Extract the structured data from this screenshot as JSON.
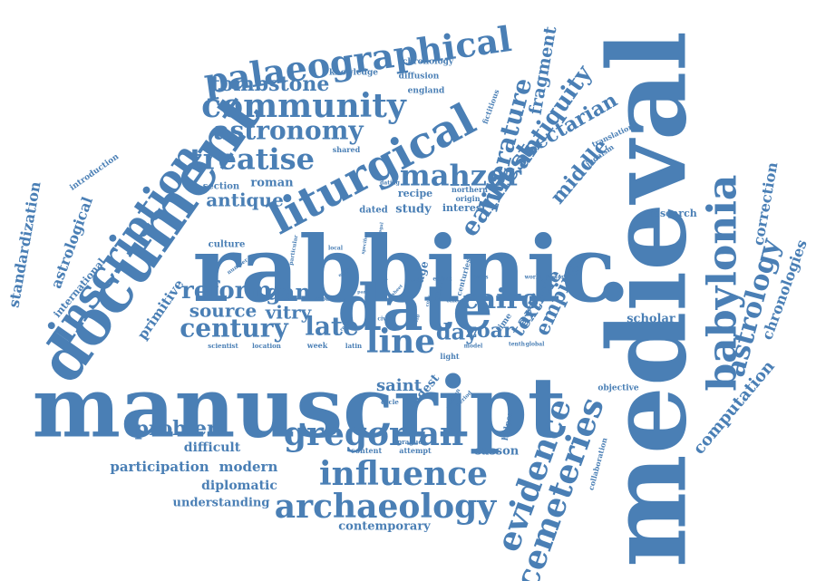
{
  "color": "#4a7fb5",
  "words": [
    {
      "text": "manuscript",
      "weight": 100
    },
    {
      "text": "rabbinic",
      "weight": 95
    },
    {
      "text": "medieval",
      "weight": 96
    },
    {
      "text": "date",
      "weight": 68
    },
    {
      "text": "document",
      "weight": 62
    },
    {
      "text": "babylonia",
      "weight": 50
    },
    {
      "text": "inscription",
      "weight": 48
    },
    {
      "text": "liturgical",
      "weight": 46
    },
    {
      "text": "cemeteries",
      "weight": 42
    },
    {
      "text": "evidence",
      "weight": 42
    },
    {
      "text": "palaeographical",
      "weight": 42
    },
    {
      "text": "community",
      "weight": 37
    },
    {
      "text": "gregorian",
      "weight": 37
    },
    {
      "text": "influence",
      "weight": 36
    },
    {
      "text": "archaeology",
      "weight": 36
    },
    {
      "text": "line",
      "weight": 36
    },
    {
      "text": "astrology",
      "weight": 34
    },
    {
      "text": "treatise",
      "weight": 32
    },
    {
      "text": "astronomy",
      "weight": 32
    },
    {
      "text": "century",
      "weight": 32
    },
    {
      "text": "mahzor",
      "weight": 32
    },
    {
      "text": "literature",
      "weight": 30
    },
    {
      "text": "earliest",
      "weight": 30
    },
    {
      "text": "cairo",
      "weight": 30
    },
    {
      "text": "late",
      "weight": 28
    },
    {
      "text": "reform",
      "weight": 28
    },
    {
      "text": "antiquity",
      "weight": 26
    },
    {
      "text": "tombstone",
      "weight": 24
    },
    {
      "text": "problem",
      "weight": 24
    },
    {
      "text": "gan",
      "weight": 24
    },
    {
      "text": "day",
      "weight": 24
    },
    {
      "text": "zoar",
      "weight": 22
    },
    {
      "text": "empire",
      "weight": 22
    },
    {
      "text": "sectarian",
      "weight": 22
    },
    {
      "text": "article",
      "weight": 22
    },
    {
      "text": "middle",
      "weight": 22
    },
    {
      "text": "source",
      "weight": 20
    },
    {
      "text": "vitry",
      "weight": 20
    },
    {
      "text": "antique",
      "weight": 20
    },
    {
      "text": "text",
      "weight": 20
    },
    {
      "text": "fragment",
      "weight": 19
    },
    {
      "text": "saint",
      "weight": 18
    },
    {
      "text": "computation",
      "weight": 18
    },
    {
      "text": "chronologies",
      "weight": 16
    },
    {
      "text": "correction",
      "weight": 16
    },
    {
      "text": "standardization",
      "weight": 16
    },
    {
      "text": "astrological",
      "weight": 16
    },
    {
      "text": "primitive",
      "weight": 15
    },
    {
      "text": "participation",
      "weight": 15
    },
    {
      "text": "modern",
      "weight": 15
    },
    {
      "text": "difficult",
      "weight": 14
    },
    {
      "text": "diplomatic",
      "weight": 14
    },
    {
      "text": "understanding",
      "weight": 13
    },
    {
      "text": "contemporary",
      "weight": 13
    },
    {
      "text": "sasson",
      "weight": 13
    },
    {
      "text": "scholar",
      "weight": 13
    },
    {
      "text": "oldest",
      "weight": 13
    },
    {
      "text": "roman",
      "weight": 13
    },
    {
      "text": "study",
      "weight": 13
    },
    {
      "text": "recipe",
      "weight": 11
    },
    {
      "text": "research",
      "weight": 11
    },
    {
      "text": "international",
      "weight": 11
    },
    {
      "text": "interest",
      "weight": 11
    },
    {
      "text": "dated",
      "weight": 10
    },
    {
      "text": "section",
      "weight": 10
    },
    {
      "text": "more",
      "weight": 10
    },
    {
      "text": "culture",
      "weight": 10
    },
    {
      "text": "objective",
      "weight": 9
    },
    {
      "text": "age",
      "weight": 12
    },
    {
      "text": "introduction",
      "weight": 9
    },
    {
      "text": "chronology",
      "weight": 9
    },
    {
      "text": "knowledge",
      "weight": 9
    },
    {
      "text": "diffusion",
      "weight": 9
    },
    {
      "text": "england",
      "weight": 9
    },
    {
      "text": "shared",
      "weight": 8
    },
    {
      "text": "halper",
      "weight": 9
    },
    {
      "text": "content",
      "weight": 8
    },
    {
      "text": "attempt",
      "weight": 8
    },
    {
      "text": "collaboration",
      "weight": 8
    },
    {
      "text": "translation",
      "weight": 8
    },
    {
      "text": "judaism",
      "weight": 8
    },
    {
      "text": "fictitious",
      "weight": 8
    },
    {
      "text": "northern",
      "weight": 8
    },
    {
      "text": "origin",
      "weight": 8
    },
    {
      "text": "centuries",
      "weight": 8
    },
    {
      "text": "light",
      "weight": 8
    },
    {
      "text": "week",
      "weight": 8
    },
    {
      "text": "latin",
      "weight": 7
    },
    {
      "text": "location",
      "weight": 7
    },
    {
      "text": "scientist",
      "weight": 7
    },
    {
      "text": "moon",
      "weight": 7
    },
    {
      "text": "prague",
      "weight": 7
    },
    {
      "text": "cycle",
      "weight": 7
    },
    {
      "text": "dating",
      "weight": 6
    },
    {
      "text": "basis",
      "weight": 6
    },
    {
      "text": "world",
      "weight": 6
    },
    {
      "text": "history",
      "weight": 6
    },
    {
      "text": "extant",
      "weight": 6
    },
    {
      "text": "model",
      "weight": 6
    },
    {
      "text": "tenth",
      "weight": 6
    },
    {
      "text": "global",
      "weight": 6
    },
    {
      "text": "period",
      "weight": 6
    },
    {
      "text": "version",
      "weight": 6
    },
    {
      "text": "particular",
      "weight": 6
    },
    {
      "text": "number",
      "weight": 6
    },
    {
      "text": "local",
      "weight": 6
    },
    {
      "text": "specific",
      "weight": 5
    },
    {
      "text": "legal",
      "weight": 5
    },
    {
      "text": "egypt",
      "weight": 5
    },
    {
      "text": "civic",
      "weight": 6
    },
    {
      "text": "time",
      "weight": 9
    },
    {
      "text": "life",
      "weight": 6
    },
    {
      "text": "jew",
      "weight": 5
    },
    {
      "text": "work",
      "weight": 5
    },
    {
      "text": "reality",
      "weight": 5
    },
    {
      "text": "part",
      "weight": 5
    },
    {
      "text": "other",
      "weight": 5
    },
    {
      "text": "copy",
      "weight": 5
    },
    {
      "text": "sheet",
      "weight": 5
    }
  ]
}
